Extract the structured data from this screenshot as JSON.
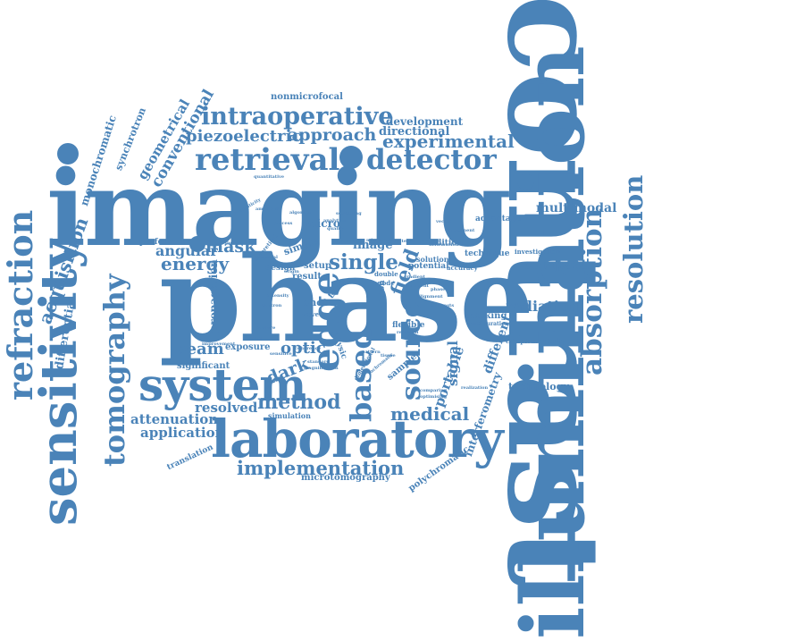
{
  "colors": {
    "accent": "#4a83b8"
  },
  "words": {
    "contrast": "contrast",
    "illumination": "illumination",
    "imaging": "imaging",
    "phase": "phase",
    "laboratory": "laboratory",
    "system": "system",
    "sensitivity": "sensitivity",
    "intraoperative": "intraoperative",
    "retrieval": "retrieval",
    "detector": "detector",
    "refraction": "refraction",
    "tomography": "tomography",
    "edge": "edge",
    "based": "based",
    "source": "source",
    "absorption": "absorption",
    "resolution": "resolution",
    "implementation": "implementation",
    "experimental": "experimental",
    "piezoelectric": "piezoelectric",
    "approach": "approach",
    "energy": "energy",
    "single": "single",
    "mask": "mask",
    "angular": "angular",
    "method": "method",
    "medical": "medical",
    "beam": "beam",
    "optic": "optic",
    "dark": "dark",
    "field": "field",
    "attenuation": "attenuation",
    "application": "application",
    "resolved": "resolved",
    "acquisition": "acquisition",
    "multimodal": "multimodal",
    "compact": "compact",
    "radiation": "radiation",
    "conventional": "conventional",
    "geometrical": "geometrical",
    "monochromatic": "monochromatic",
    "synchrotron": "synchrotron",
    "development": "development",
    "directional": "directional",
    "nonmicrofocal": "nonmicrofocal",
    "differential": "differential",
    "propagation": "propagation",
    "exposure": "exposure",
    "significant": "significant",
    "micro": "micro",
    "image": "image",
    "simple": "simple",
    "performance": "performance",
    "design": "design",
    "result": "result",
    "setup": "setup",
    "shot": "shot",
    "flexible": "flexible",
    "portable": "portable",
    "signal": "signal",
    "different": "different",
    "interferometry": "interferometry",
    "polychromatic": "polychromatic",
    "microtomography": "microtomography",
    "technology": "technology",
    "complementarity": "complementarity",
    "tracking": "tracking",
    "advantage": "advantage",
    "technique": "technique",
    "condition": "condition",
    "potential": "potential",
    "solution": "solution",
    "accuracy": "accuracy",
    "translation": "translation",
    "simulation": "simulation",
    "investigation": "investigation",
    "configuration": "configuration",
    "sample": "sample",
    "parameter": "parameter",
    "time": "time",
    "physic": "physic",
    "precision": "precision",
    "anode": "anode",
    "double": "double",
    "quantitative": "quantitative",
    "achromaticity": "achromaticity",
    "microscale": "microscale",
    "material": "material",
    "alignment": "alignment",
    "comparing": "comparing",
    "optimising": "optimising",
    "achromatic": "achromatic",
    "realization": "realization",
    "improvement": "improvement",
    "dimensional": "dimensional",
    "standard": "standard",
    "spatial": "spatial",
    "separate": "separate",
    "origin": "origin",
    "increase": "increase",
    "research": "research",
    "feature": "feature",
    "wave": "wave",
    "emergent": "emergent",
    "sensitive": "sensitive",
    "component": "component",
    "electron": "electron",
    "analytical": "analytical",
    "algorithm": "algorithm",
    "theoretical": "theoretical",
    "scattering": "scattering",
    "distribution": "distribution",
    "magnification": "magnification",
    "intensity": "intensity",
    "quality": "quality",
    "amplified": "amplified",
    "gradient": "gradient",
    "object": "object",
    "coherence": "coherence",
    "process": "process",
    "contrasts": "contrasts",
    "pattern": "pattern",
    "vector": "vector",
    "phases": "phases",
    "tissue": "tissue"
  }
}
